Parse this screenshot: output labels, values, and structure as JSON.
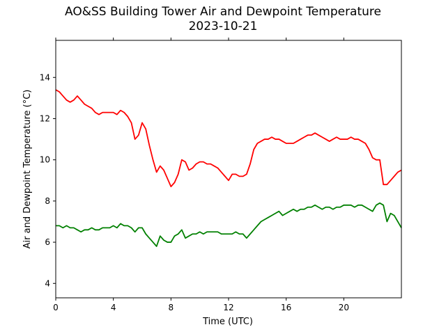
{
  "chart_data": {
    "type": "line",
    "title": "AO&SS Building Tower Air and Dewpoint Temperature",
    "subtitle": "2023-10-21",
    "xlabel": "Time (UTC)",
    "ylabel": "Air and Dewpoint Temperature (°C)",
    "xlim": [
      0,
      24
    ],
    "ylim": [
      3.3,
      15.8
    ],
    "x_ticks": [
      0,
      4,
      8,
      12,
      16,
      20
    ],
    "y_ticks": [
      4,
      6,
      8,
      10,
      12,
      14
    ],
    "grid": false,
    "legend": "none",
    "series": [
      {
        "color": "#ff0000",
        "x": [
          0.0,
          0.25,
          0.5,
          0.75,
          1.0,
          1.25,
          1.5,
          1.75,
          2.0,
          2.25,
          2.5,
          2.75,
          3.0,
          3.25,
          3.5,
          3.75,
          4.0,
          4.25,
          4.5,
          4.75,
          5.0,
          5.25,
          5.5,
          5.75,
          6.0,
          6.25,
          6.5,
          6.75,
          7.0,
          7.25,
          7.5,
          7.75,
          8.0,
          8.25,
          8.5,
          8.75,
          9.0,
          9.25,
          9.5,
          9.75,
          10.0,
          10.25,
          10.5,
          10.75,
          11.0,
          11.25,
          11.5,
          11.75,
          12.0,
          12.25,
          12.5,
          12.75,
          13.0,
          13.25,
          13.5,
          13.75,
          14.0,
          14.25,
          14.5,
          14.75,
          15.0,
          15.25,
          15.5,
          15.75,
          16.0,
          16.25,
          16.5,
          16.75,
          17.0,
          17.25,
          17.5,
          17.75,
          18.0,
          18.25,
          18.5,
          18.75,
          19.0,
          19.25,
          19.5,
          19.75,
          20.0,
          20.25,
          20.5,
          20.75,
          21.0,
          21.25,
          21.5,
          21.75,
          22.0,
          22.25,
          22.5,
          22.75,
          23.0,
          23.25,
          23.5,
          23.75,
          24.0
        ],
        "y": [
          13.4,
          13.3,
          13.1,
          12.9,
          12.8,
          12.9,
          13.1,
          12.9,
          12.7,
          12.6,
          12.5,
          12.3,
          12.2,
          12.3,
          12.3,
          12.3,
          12.3,
          12.2,
          12.4,
          12.3,
          12.1,
          11.8,
          11.0,
          11.2,
          11.8,
          11.5,
          10.7,
          10.0,
          9.4,
          9.7,
          9.5,
          9.1,
          8.7,
          8.9,
          9.3,
          10.0,
          9.9,
          9.5,
          9.6,
          9.8,
          9.9,
          9.9,
          9.8,
          9.8,
          9.7,
          9.6,
          9.4,
          9.2,
          9.0,
          9.3,
          9.3,
          9.2,
          9.2,
          9.3,
          9.8,
          10.5,
          10.8,
          10.9,
          11.0,
          11.0,
          11.1,
          11.0,
          11.0,
          10.9,
          10.8,
          10.8,
          10.8,
          10.9,
          11.0,
          11.1,
          11.2,
          11.2,
          11.3,
          11.2,
          11.1,
          11.0,
          10.9,
          11.0,
          11.1,
          11.0,
          11.0,
          11.0,
          11.1,
          11.0,
          11.0,
          10.9,
          10.8,
          10.5,
          10.1,
          10.0,
          10.0,
          8.8,
          8.8,
          9.0,
          9.2,
          9.4,
          9.5
        ]
      },
      {
        "color": "#008000",
        "x": [
          0.0,
          0.25,
          0.5,
          0.75,
          1.0,
          1.25,
          1.5,
          1.75,
          2.0,
          2.25,
          2.5,
          2.75,
          3.0,
          3.25,
          3.5,
          3.75,
          4.0,
          4.25,
          4.5,
          4.75,
          5.0,
          5.25,
          5.5,
          5.75,
          6.0,
          6.25,
          6.5,
          6.75,
          7.0,
          7.25,
          7.5,
          7.75,
          8.0,
          8.25,
          8.5,
          8.75,
          9.0,
          9.25,
          9.5,
          9.75,
          10.0,
          10.25,
          10.5,
          10.75,
          11.0,
          11.25,
          11.5,
          11.75,
          12.0,
          12.25,
          12.5,
          12.75,
          13.0,
          13.25,
          13.5,
          13.75,
          14.0,
          14.25,
          14.5,
          14.75,
          15.0,
          15.25,
          15.5,
          15.75,
          16.0,
          16.25,
          16.5,
          16.75,
          17.0,
          17.25,
          17.5,
          17.75,
          18.0,
          18.25,
          18.5,
          18.75,
          19.0,
          19.25,
          19.5,
          19.75,
          20.0,
          20.25,
          20.5,
          20.75,
          21.0,
          21.25,
          21.5,
          21.75,
          22.0,
          22.25,
          22.5,
          22.75,
          23.0,
          23.25,
          23.5,
          23.75,
          24.0
        ],
        "y": [
          6.8,
          6.8,
          6.7,
          6.8,
          6.7,
          6.7,
          6.6,
          6.5,
          6.6,
          6.6,
          6.7,
          6.6,
          6.6,
          6.7,
          6.7,
          6.7,
          6.8,
          6.7,
          6.9,
          6.8,
          6.8,
          6.7,
          6.5,
          6.7,
          6.7,
          6.4,
          6.2,
          6.0,
          5.8,
          6.3,
          6.1,
          6.0,
          6.0,
          6.3,
          6.4,
          6.6,
          6.2,
          6.3,
          6.4,
          6.4,
          6.5,
          6.4,
          6.5,
          6.5,
          6.5,
          6.5,
          6.4,
          6.4,
          6.4,
          6.4,
          6.5,
          6.4,
          6.4,
          6.2,
          6.4,
          6.6,
          6.8,
          7.0,
          7.1,
          7.2,
          7.3,
          7.4,
          7.5,
          7.3,
          7.4,
          7.5,
          7.6,
          7.5,
          7.6,
          7.6,
          7.7,
          7.7,
          7.8,
          7.7,
          7.6,
          7.7,
          7.7,
          7.6,
          7.7,
          7.7,
          7.8,
          7.8,
          7.8,
          7.7,
          7.8,
          7.8,
          7.7,
          7.6,
          7.5,
          7.8,
          7.9,
          7.8,
          7.0,
          7.4,
          7.3,
          7.0,
          6.7
        ]
      }
    ]
  }
}
